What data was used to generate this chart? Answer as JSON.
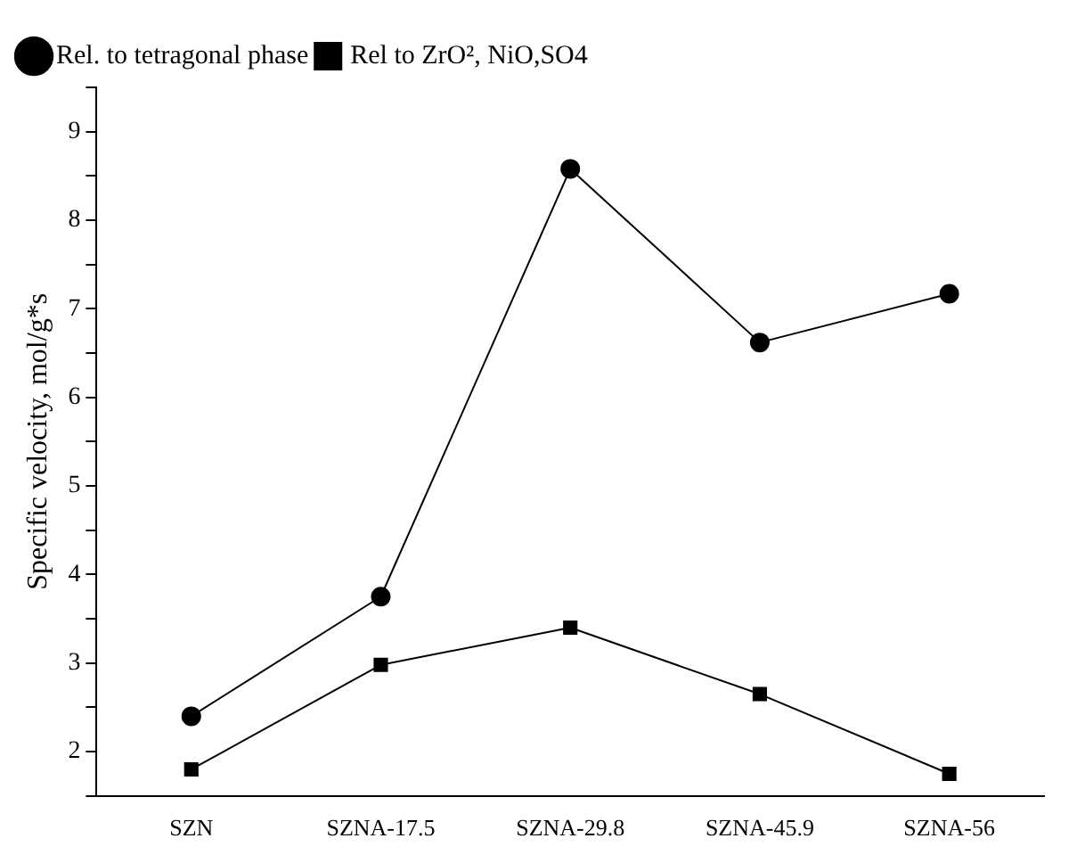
{
  "chart_data": {
    "type": "line",
    "ylabel": "Specific velocity, mol/g*s",
    "categories": [
      "SZN",
      "SZNA-17.5",
      "SZNA-29.8",
      "SZNA-45.9",
      "SZNA-56"
    ],
    "series": [
      {
        "name": "Rel. to tetragonal phase",
        "color": "#000000",
        "marker": "circle",
        "values": [
          2.4,
          3.75,
          8.58,
          6.62,
          7.17
        ]
      },
      {
        "name": "Rel to ZrO², NiO,SO4",
        "color": "#000000",
        "marker": "square",
        "values": [
          1.8,
          2.98,
          3.4,
          2.65,
          1.75
        ]
      }
    ],
    "ylim": [
      1.5,
      9.5
    ],
    "yticks": [
      {
        "value": 1.5,
        "label": null
      },
      2,
      {
        "value": 2.5,
        "label": null
      },
      3,
      {
        "value": 3.5,
        "label": null
      },
      4,
      {
        "value": 4.5,
        "label": null
      },
      5,
      {
        "value": 5.5,
        "label": null
      },
      6,
      {
        "value": 6.5,
        "label": null
      },
      7,
      {
        "value": 7.5,
        "label": null
      },
      8,
      {
        "value": 8.5,
        "label": null
      },
      9,
      {
        "value": 9.5,
        "label": null
      }
    ],
    "grid": false,
    "legend": "top left",
    "line_style": "solid"
  }
}
